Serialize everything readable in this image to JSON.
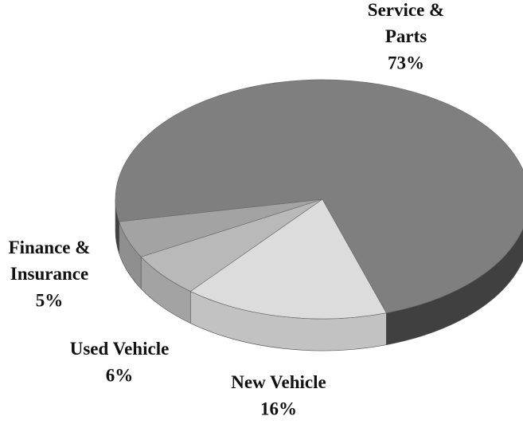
{
  "chart_data": {
    "type": "pie3d",
    "categories": [
      "New Vehicle",
      "Used Vehicle",
      "Finance & Insurance",
      "Service & Parts"
    ],
    "values": [
      16,
      6,
      5,
      73
    ],
    "value_labels": [
      "16%",
      "6%",
      "5%",
      "73%"
    ],
    "colors": [
      "#dcdcdc",
      "#b9b9b9",
      "#a3a3a3",
      "#7f7f7f"
    ]
  }
}
